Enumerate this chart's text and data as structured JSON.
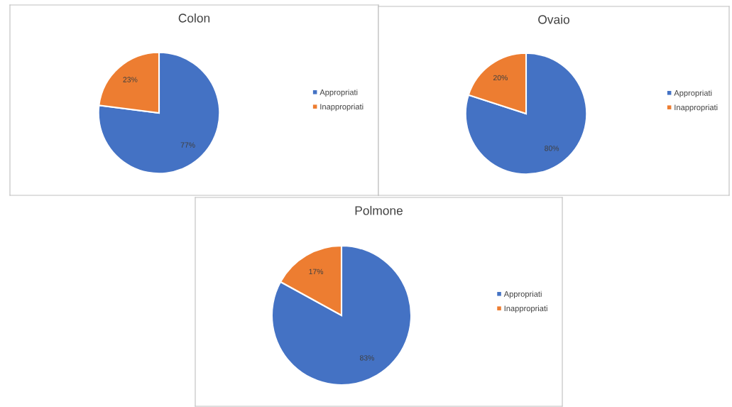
{
  "chart_data": [
    {
      "type": "pie",
      "title": "Colon",
      "categories": [
        "Appropriati",
        "Inappropriati"
      ],
      "values": [
        77,
        23
      ],
      "value_labels": [
        "77%",
        "23%"
      ],
      "colors": [
        "#4472c4",
        "#ed7d31"
      ],
      "legend": "right"
    },
    {
      "type": "pie",
      "title": "Ovaio",
      "categories": [
        "Appropriati",
        "Inappropriati"
      ],
      "values": [
        80,
        20
      ],
      "value_labels": [
        "80%",
        "20%"
      ],
      "colors": [
        "#4472c4",
        "#ed7d31"
      ],
      "legend": "right"
    },
    {
      "type": "pie",
      "title": "Polmone",
      "categories": [
        "Appropriati",
        "Inappropriati"
      ],
      "values": [
        83,
        17
      ],
      "value_labels": [
        "83%",
        "17%"
      ],
      "colors": [
        "#4472c4",
        "#ed7d31"
      ],
      "legend": "right"
    }
  ]
}
